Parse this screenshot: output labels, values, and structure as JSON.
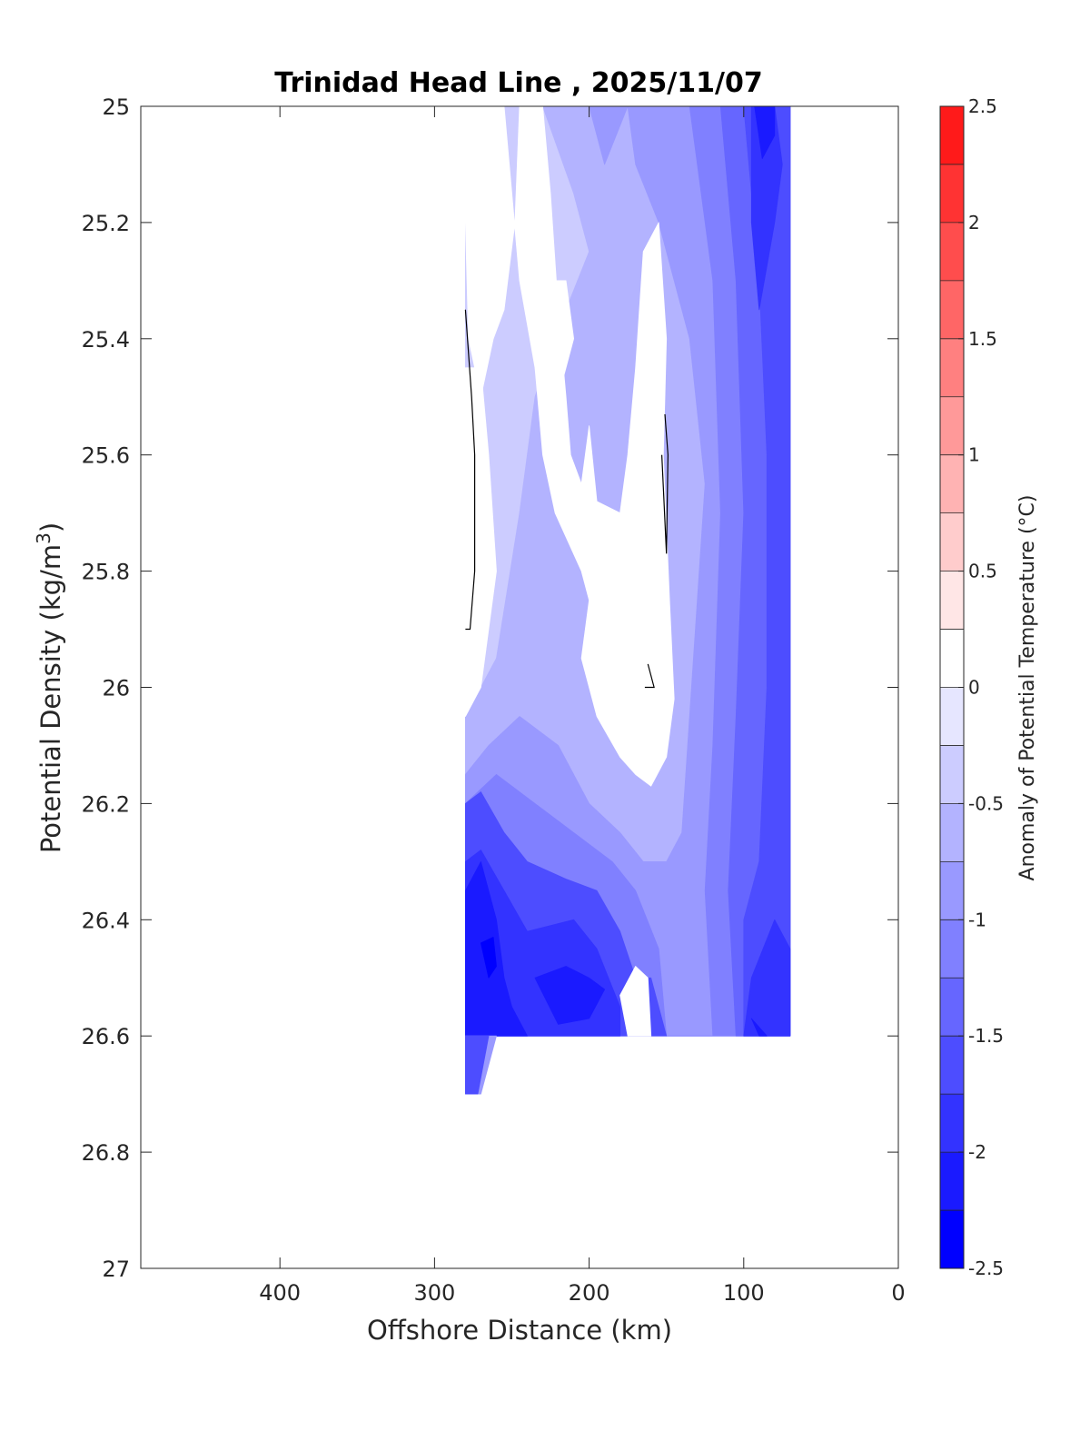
{
  "chart_data": {
    "type": "contour",
    "title": "Trinidad Head Line , 2025/11/07",
    "xlabel": "Offshore Distance (km)",
    "ylabel": "Potential Density (kg/m3)",
    "ylabel_main": "Potential Density (kg/m",
    "ylabel_sup": "3",
    "ylabel_close": ")",
    "xlim": [
      490,
      0
    ],
    "ylim": [
      25,
      27
    ],
    "x_reversed": true,
    "y_reversed": true,
    "xticks": [
      400,
      300,
      200,
      100,
      0
    ],
    "xtick_labels": [
      "400",
      "300",
      "200",
      "100",
      "0"
    ],
    "yticks": [
      25,
      25.2,
      25.4,
      25.6,
      25.8,
      26,
      26.2,
      26.4,
      26.6,
      26.8,
      27
    ],
    "ytick_labels": [
      "25",
      "25.2",
      "25.4",
      "25.6",
      "25.8",
      "26",
      "26.2",
      "26.4",
      "26.6",
      "26.8",
      "27"
    ],
    "grid": false,
    "colorbar": {
      "label": "Anomaly of Potential Temperature (°C)",
      "range": [
        -2.5,
        2.5
      ],
      "ticks": [
        2.5,
        2,
        1.5,
        1,
        0.5,
        0,
        -0.5,
        -1,
        -1.5,
        -2,
        -2.5
      ],
      "tick_labels": [
        "2.5",
        "2",
        "1.5",
        "1",
        "0.5",
        "0",
        "-0.5",
        "-1",
        "-1.5",
        "-2",
        "-2.5"
      ],
      "levels": [
        -2.5,
        -2.25,
        -2,
        -1.75,
        -1.5,
        -1.25,
        -1,
        -0.75,
        -0.5,
        -0.25,
        0,
        0.25,
        0.5,
        0.75,
        1,
        1.25,
        1.5,
        1.75,
        2,
        2.25,
        2.5
      ],
      "colors": [
        "#0000ff",
        "#1a1aff",
        "#3333ff",
        "#4d4dff",
        "#6666ff",
        "#8080ff",
        "#9999ff",
        "#b3b3ff",
        "#ccccff",
        "#e6e6ff",
        "#ffffff",
        "#ffe6e6",
        "#ffcccc",
        "#ffb3b3",
        "#ff9999",
        "#ff8080",
        "#ff6666",
        "#ff4d4d",
        "#ff3333",
        "#ff1a1a"
      ]
    },
    "regions": [
      {
        "level": -0.375,
        "points": [
          [
            280,
            25
          ],
          [
            70,
            25
          ],
          [
            70,
            26.6
          ],
          [
            280,
            26.6
          ]
        ]
      },
      {
        "level": -0.625,
        "points": [
          [
            230,
            25
          ],
          [
            70,
            25
          ],
          [
            70,
            26.6
          ],
          [
            180,
            26.6
          ],
          [
            170,
            26.5
          ],
          [
            160,
            26.5
          ],
          [
            150,
            26.6
          ],
          [
            280,
            26.6
          ],
          [
            280,
            26.05
          ],
          [
            270,
            26
          ],
          [
            260,
            25.95
          ],
          [
            245,
            25.7
          ],
          [
            235,
            25.5
          ],
          [
            215,
            25.35
          ],
          [
            200,
            25.25
          ],
          [
            210,
            25.15
          ]
        ]
      },
      {
        "level": -0.875,
        "points": [
          [
            200,
            25
          ],
          [
            70,
            25
          ],
          [
            70,
            26.6
          ],
          [
            150,
            26.6
          ],
          [
            160,
            26.5
          ],
          [
            170,
            26.5
          ],
          [
            180,
            26.6
          ],
          [
            280,
            26.6
          ],
          [
            280,
            26.15
          ],
          [
            265,
            26.1
          ],
          [
            245,
            26.05
          ],
          [
            220,
            26.1
          ],
          [
            200,
            26.2
          ],
          [
            180,
            26.25
          ],
          [
            165,
            26.3
          ],
          [
            150,
            26.3
          ],
          [
            140,
            26.25
          ],
          [
            125,
            25.65
          ],
          [
            135,
            25.4
          ],
          [
            155,
            25.2
          ],
          [
            170,
            25.1
          ],
          [
            175,
            25
          ],
          [
            190,
            25.1
          ]
        ]
      },
      {
        "level": -1.125,
        "points": [
          [
            135,
            25
          ],
          [
            70,
            25
          ],
          [
            70,
            26.6
          ],
          [
            150,
            26.6
          ],
          [
            155,
            26.45
          ],
          [
            170,
            26.35
          ],
          [
            185,
            26.3
          ],
          [
            210,
            26.25
          ],
          [
            235,
            26.2
          ],
          [
            260,
            26.15
          ],
          [
            280,
            26.2
          ],
          [
            280,
            26.6
          ],
          [
            180,
            26.6
          ],
          [
            170,
            26.5
          ],
          [
            160,
            26.5
          ],
          [
            150,
            26.6
          ],
          [
            120,
            26.6
          ],
          [
            125,
            26.35
          ],
          [
            120,
            26.1
          ],
          [
            115,
            25.7
          ],
          [
            120,
            25.3
          ]
        ]
      },
      {
        "level": -1.375,
        "points": [
          [
            115,
            25
          ],
          [
            70,
            25
          ],
          [
            70,
            26.6
          ],
          [
            105,
            26.6
          ],
          [
            110,
            26.35
          ],
          [
            105,
            26.05
          ],
          [
            100,
            25.7
          ],
          [
            105,
            25.3
          ]
        ]
      },
      {
        "level": -1.625,
        "points": [
          [
            100,
            25
          ],
          [
            70,
            25
          ],
          [
            70,
            26.6
          ],
          [
            100,
            26.6
          ],
          [
            100,
            26.4
          ],
          [
            90,
            26.3
          ],
          [
            85,
            26.0
          ],
          [
            85,
            25.6
          ],
          [
            90,
            25.3
          ],
          [
            95,
            25.15
          ]
        ]
      },
      {
        "level": -1.625,
        "points": [
          [
            280,
            26.2
          ],
          [
            270,
            26.18
          ],
          [
            255,
            26.25
          ],
          [
            240,
            26.3
          ],
          [
            215,
            26.33
          ],
          [
            195,
            26.35
          ],
          [
            180,
            26.42
          ],
          [
            170,
            26.5
          ],
          [
            160,
            26.5
          ],
          [
            150,
            26.6
          ],
          [
            280,
            26.6
          ]
        ]
      },
      {
        "level": -1.875,
        "points": [
          [
            280,
            26.3
          ],
          [
            270,
            26.28
          ],
          [
            255,
            26.35
          ],
          [
            240,
            26.42
          ],
          [
            210,
            26.4
          ],
          [
            195,
            26.45
          ],
          [
            180,
            26.55
          ],
          [
            180,
            26.6
          ],
          [
            250,
            26.6
          ],
          [
            260,
            26.6
          ],
          [
            280,
            26.6
          ]
        ]
      },
      {
        "level": -1.875,
        "points": [
          [
            95,
            25
          ],
          [
            80,
            25
          ],
          [
            75,
            25.1
          ],
          [
            80,
            25.2
          ],
          [
            90,
            25.35
          ],
          [
            95,
            25.2
          ]
        ]
      },
      {
        "level": -1.875,
        "points": [
          [
            70,
            26.45
          ],
          [
            80,
            26.4
          ],
          [
            95,
            26.5
          ],
          [
            100,
            26.6
          ],
          [
            70,
            26.6
          ]
        ]
      },
      {
        "level": -2.125,
        "points": [
          [
            280,
            26.35
          ],
          [
            270,
            26.3
          ],
          [
            260,
            26.4
          ],
          [
            255,
            26.5
          ],
          [
            250,
            26.55
          ],
          [
            240,
            26.6
          ],
          [
            265,
            26.6
          ],
          [
            280,
            26.6
          ]
        ]
      },
      {
        "level": -2.125,
        "points": [
          [
            235,
            26.5
          ],
          [
            215,
            26.48
          ],
          [
            200,
            26.5
          ],
          [
            190,
            26.52
          ],
          [
            200,
            26.57
          ],
          [
            220,
            26.58
          ]
        ]
      },
      {
        "level": -2.125,
        "points": [
          [
            93,
            25
          ],
          [
            80,
            25
          ],
          [
            80,
            25.05
          ],
          [
            88,
            25.09
          ]
        ]
      },
      {
        "level": -2.125,
        "points": [
          [
            95,
            26.57
          ],
          [
            90,
            26.6
          ],
          [
            85,
            26.6
          ]
        ]
      },
      {
        "level": -2.375,
        "points": [
          [
            270,
            26.44
          ],
          [
            262,
            26.43
          ],
          [
            260,
            26.48
          ],
          [
            265,
            26.5
          ]
        ]
      },
      {
        "level": -0.875,
        "points": [
          [
            280,
            26.6
          ],
          [
            260,
            26.6
          ],
          [
            270,
            26.7
          ],
          [
            280,
            26.7
          ]
        ]
      },
      {
        "level": -1.625,
        "points": [
          [
            280,
            26.6
          ],
          [
            265,
            26.6
          ],
          [
            272,
            26.7
          ],
          [
            280,
            26.7
          ]
        ]
      },
      {
        "level": 0.125,
        "points": [
          [
            280,
            25
          ],
          [
            255,
            25
          ],
          [
            250,
            25.15
          ],
          [
            245,
            25.3
          ],
          [
            235,
            25.45
          ],
          [
            230,
            25.6
          ],
          [
            222,
            25.7
          ],
          [
            205,
            25.8
          ],
          [
            200,
            25.85
          ],
          [
            205,
            25.95
          ],
          [
            195,
            26.05
          ],
          [
            180,
            26.12
          ],
          [
            170,
            26.15
          ],
          [
            160,
            26.17
          ],
          [
            150,
            26.12
          ],
          [
            145,
            26.02
          ],
          [
            148,
            25.85
          ],
          [
            152,
            25.6
          ],
          [
            150,
            25.4
          ],
          [
            155,
            25.2
          ],
          [
            165,
            25.25
          ],
          [
            170,
            25.45
          ],
          [
            175,
            25.6
          ],
          [
            180,
            25.7
          ],
          [
            195,
            25.68
          ],
          [
            200,
            25.55
          ],
          [
            205,
            25.65
          ],
          [
            212,
            25.6
          ],
          [
            215,
            25.5
          ],
          [
            220,
            25.35
          ],
          [
            225,
            25.15
          ],
          [
            230,
            25
          ],
          [
            245,
            25
          ],
          [
            248,
            25.2
          ],
          [
            255,
            25.35
          ],
          [
            262,
            25.4
          ],
          [
            270,
            25.5
          ],
          [
            278,
            25.4
          ],
          [
            280,
            25.2
          ]
        ]
      },
      {
        "level": 0.125,
        "points": [
          [
            230,
            25.3
          ],
          [
            220,
            25.5
          ],
          [
            210,
            25.4
          ],
          [
            215,
            25.3
          ]
        ]
      },
      {
        "level": 0.125,
        "points": [
          [
            280,
            25.45
          ],
          [
            270,
            25.45
          ],
          [
            265,
            25.6
          ],
          [
            260,
            25.8
          ],
          [
            270,
            26
          ],
          [
            280,
            26.05
          ]
        ]
      },
      {
        "level": 0.125,
        "points": [
          [
            180,
            26.53
          ],
          [
            175,
            26.6
          ],
          [
            160,
            26.6
          ],
          [
            162,
            26.5
          ],
          [
            170,
            26.48
          ]
        ]
      }
    ],
    "contour_lines": [
      [
        [
          280,
          25.35
        ],
        [
          276,
          25.5
        ],
        [
          274,
          25.6
        ],
        [
          274,
          25.8
        ],
        [
          277,
          25.9
        ],
        [
          280,
          25.9
        ]
      ],
      [
        [
          151,
          25.53
        ],
        [
          149,
          25.6
        ],
        [
          150,
          25.77
        ],
        [
          153,
          25.6
        ]
      ],
      [
        [
          164,
          26.0
        ],
        [
          158,
          26.0
        ],
        [
          162,
          25.96
        ]
      ]
    ]
  }
}
